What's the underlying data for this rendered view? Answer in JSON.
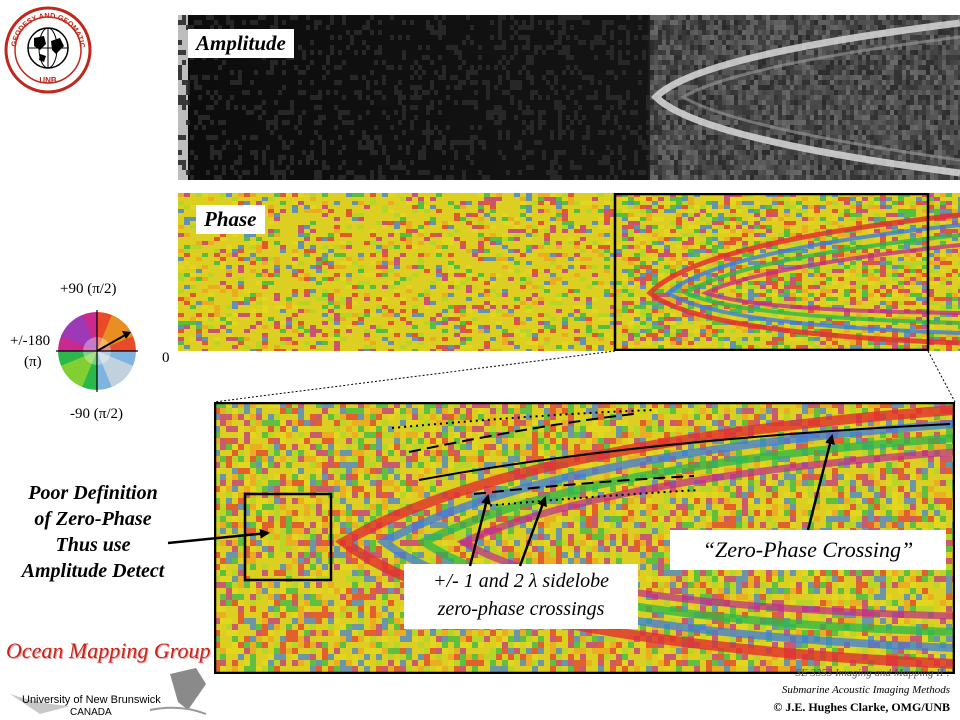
{
  "logo": {
    "ring_text": "GEODESY AND GEOMATICS ENGINEERING",
    "inner_text": "UNB"
  },
  "panels": {
    "amplitude_label": "Amplitude",
    "phase_label": "Phase"
  },
  "phase_wheel": {
    "top_label": "+90 (π/2)",
    "left_label_1": "+/-180",
    "left_label_2": "(π)",
    "right_label": "0",
    "bottom_label": "-90 (π/2)"
  },
  "annotations": {
    "poor_definition": [
      "Poor Definition",
      "of Zero-Phase",
      "Thus use",
      "Amplitude Detect"
    ],
    "zero_phase_crossing": "“Zero-Phase Crossing”",
    "sidelobe_line1": "+/- 1 and 2 λ sidelobe",
    "sidelobe_line2": "zero-phase crossings"
  },
  "footer": {
    "group_name": "Ocean Mapping Group",
    "university": "University of New Brunswick",
    "country": "CANADA",
    "course_line1": "SE 3353 Imaging and Mapping II :",
    "course_line2": "Submarine Acoustic Imaging Methods",
    "copyright": "© J.E. Hughes Clarke, OMG/UNB"
  },
  "colors": {
    "phase_palette": [
      "#e4d81e",
      "#f0a020",
      "#e23030",
      "#c12a8e",
      "#3a7ee0",
      "#2ab84a",
      "#a6d82a"
    ],
    "group_name": "#c0281e"
  }
}
